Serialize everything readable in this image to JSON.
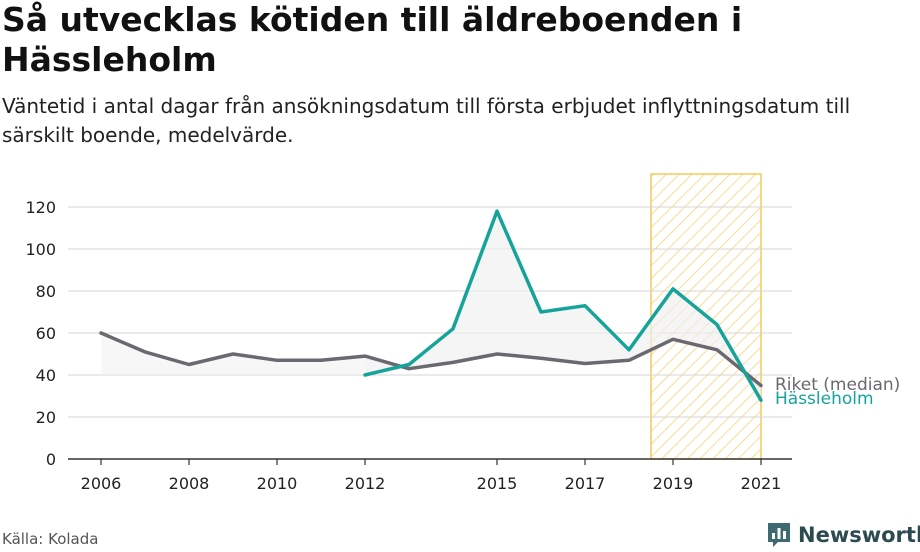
{
  "title": "Så utvecklas kötiden till äldreboenden i Hässleholm",
  "subtitle": "Väntetid i antal dagar från ansökningsdatum till första erbjudet inflyttningsdatum till särskilt boende, medelvärde.",
  "source": "Källa: Kolada",
  "brand": {
    "name": "Newsworthy",
    "icon": "newsworthy-chart-bubble-icon"
  },
  "colors": {
    "riket": "#6b6970",
    "hassleholm": "#16a39a",
    "highlight": "#f6c95a",
    "fill": "#efefef",
    "grid": "#d4d4d4"
  },
  "chart_data": {
    "type": "line",
    "title": "Så utvecklas kötiden till äldreboenden i Hässleholm",
    "xlabel": "",
    "ylabel": "",
    "ylim": [
      0,
      130
    ],
    "yticks": [
      0,
      20,
      40,
      60,
      80,
      100,
      120
    ],
    "xticks": [
      2006,
      2008,
      2010,
      2012,
      2015,
      2017,
      2019,
      2021
    ],
    "grid": true,
    "highlight_range": [
      2018.5,
      2021
    ],
    "series": [
      {
        "name": "Riket (median)",
        "x": [
          2006,
          2007,
          2008,
          2009,
          2010,
          2011,
          2012,
          2013,
          2014,
          2015,
          2016,
          2017,
          2018,
          2019,
          2020,
          2021
        ],
        "values": [
          60,
          51,
          45,
          50,
          47,
          47,
          49,
          43,
          46,
          50,
          48,
          45.5,
          47,
          57,
          52,
          35
        ]
      },
      {
        "name": "Hässleholm",
        "x": [
          2012,
          2013,
          2014,
          2015,
          2016,
          2017,
          2018,
          2019,
          2020,
          2021
        ],
        "values": [
          40,
          45,
          62,
          118,
          70,
          73,
          52,
          81,
          64,
          28
        ]
      }
    ]
  }
}
